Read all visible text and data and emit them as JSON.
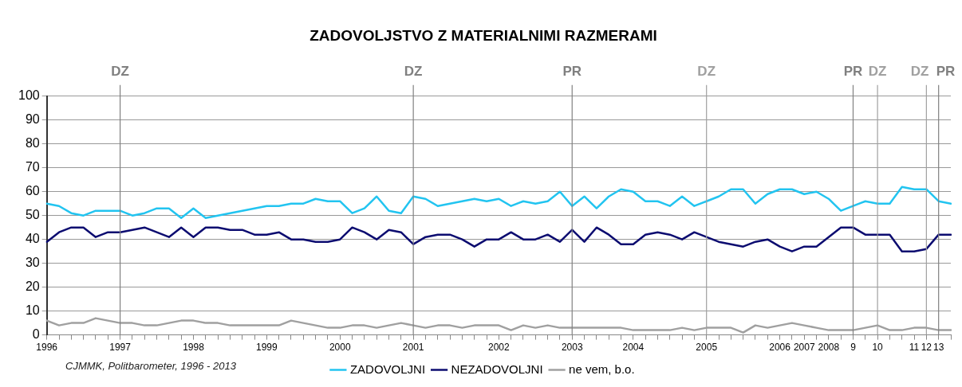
{
  "chart_data": {
    "type": "line",
    "title": "ZADOVOLJSTVO Z MATERIALNIMI RAZMERAMI",
    "categories": [
      "1996",
      null,
      null,
      null,
      null,
      null,
      "1997",
      null,
      null,
      null,
      null,
      null,
      "1998",
      null,
      null,
      null,
      null,
      null,
      "1999",
      null,
      null,
      null,
      null,
      null,
      "2000",
      null,
      null,
      null,
      null,
      null,
      "2001",
      null,
      null,
      null,
      null,
      null,
      null,
      "2002",
      null,
      null,
      null,
      null,
      null,
      "2003",
      null,
      null,
      null,
      null,
      "2004",
      null,
      null,
      null,
      null,
      null,
      "2005",
      null,
      null,
      null,
      null,
      null,
      "2006",
      null,
      "2007",
      null,
      "2008",
      null,
      "9",
      null,
      "10",
      null,
      null,
      "11",
      "12",
      "13",
      null
    ],
    "series": [
      {
        "name": "ZADOVOLJNI",
        "color": "#22c4f0",
        "values": [
          55,
          54,
          51,
          50,
          52,
          52,
          52,
          50,
          51,
          53,
          53,
          49,
          53,
          49,
          50,
          51,
          52,
          53,
          54,
          54,
          55,
          55,
          57,
          56,
          56,
          51,
          53,
          58,
          52,
          51,
          58,
          57,
          54,
          55,
          56,
          57,
          56,
          57,
          54,
          56,
          55,
          56,
          60,
          54,
          58,
          53,
          58,
          61,
          60,
          56,
          56,
          54,
          58,
          54,
          56,
          58,
          61,
          61,
          55,
          59,
          61,
          61,
          59,
          60,
          57,
          52,
          54,
          56,
          55,
          55,
          62,
          61,
          61,
          56,
          55
        ]
      },
      {
        "name": "NEZADOVOLJNI",
        "color": "#0c0c70",
        "values": [
          39,
          43,
          45,
          45,
          41,
          43,
          43,
          44,
          45,
          43,
          41,
          45,
          41,
          45,
          45,
          44,
          44,
          42,
          42,
          43,
          40,
          40,
          39,
          39,
          40,
          45,
          43,
          40,
          44,
          43,
          38,
          41,
          42,
          42,
          40,
          37,
          40,
          40,
          43,
          40,
          40,
          42,
          39,
          44,
          39,
          45,
          42,
          38,
          38,
          42,
          43,
          42,
          40,
          43,
          41,
          39,
          38,
          37,
          39,
          40,
          37,
          35,
          37,
          37,
          41,
          45,
          45,
          42,
          42,
          42,
          35,
          35,
          36,
          42,
          42
        ]
      },
      {
        "name": "ne vem, b.o.",
        "color": "#a0a0a0",
        "values": [
          6,
          4,
          5,
          5,
          7,
          6,
          5,
          5,
          4,
          4,
          5,
          6,
          6,
          5,
          5,
          4,
          4,
          4,
          4,
          4,
          6,
          5,
          4,
          3,
          3,
          4,
          4,
          3,
          4,
          5,
          4,
          3,
          4,
          4,
          3,
          4,
          4,
          4,
          2,
          4,
          3,
          4,
          3,
          3,
          3,
          3,
          3,
          3,
          2,
          2,
          2,
          2,
          3,
          2,
          3,
          3,
          3,
          1,
          4,
          3,
          4,
          5,
          4,
          3,
          2,
          2,
          2,
          3,
          4,
          2,
          2,
          3,
          3,
          2,
          2
        ]
      }
    ],
    "ylim": [
      0,
      100
    ],
    "yticks": [
      0,
      10,
      20,
      30,
      40,
      50,
      60,
      70,
      80,
      90,
      100
    ],
    "grid": "y",
    "legend": "bottom",
    "marker": "none",
    "line_style": "solid",
    "ref_lines": [
      {
        "axis": "x",
        "value": "1997",
        "label": "DZ",
        "color": "#808080"
      },
      {
        "axis": "x",
        "value": "2001",
        "label": "DZ",
        "color": "#808080"
      },
      {
        "axis": "x",
        "value": "2003",
        "label": "PR",
        "color": "#808080"
      },
      {
        "axis": "x",
        "value": "2005",
        "label": "DZ",
        "color": "#a0a0a0"
      },
      {
        "axis": "x",
        "value": "9",
        "label": "PR",
        "color": "#808080"
      },
      {
        "axis": "x",
        "value": "10",
        "label": "DZ",
        "color": "#a0a0a0"
      },
      {
        "axis": "x",
        "value": "12",
        "label": "DZ",
        "color": "#a0a0a0"
      },
      {
        "axis": "x",
        "value": "13",
        "label": "PR",
        "color": "#808080"
      }
    ],
    "annotations": [
      "CJMMK, Politbarometer, 1996 - 2013"
    ]
  }
}
